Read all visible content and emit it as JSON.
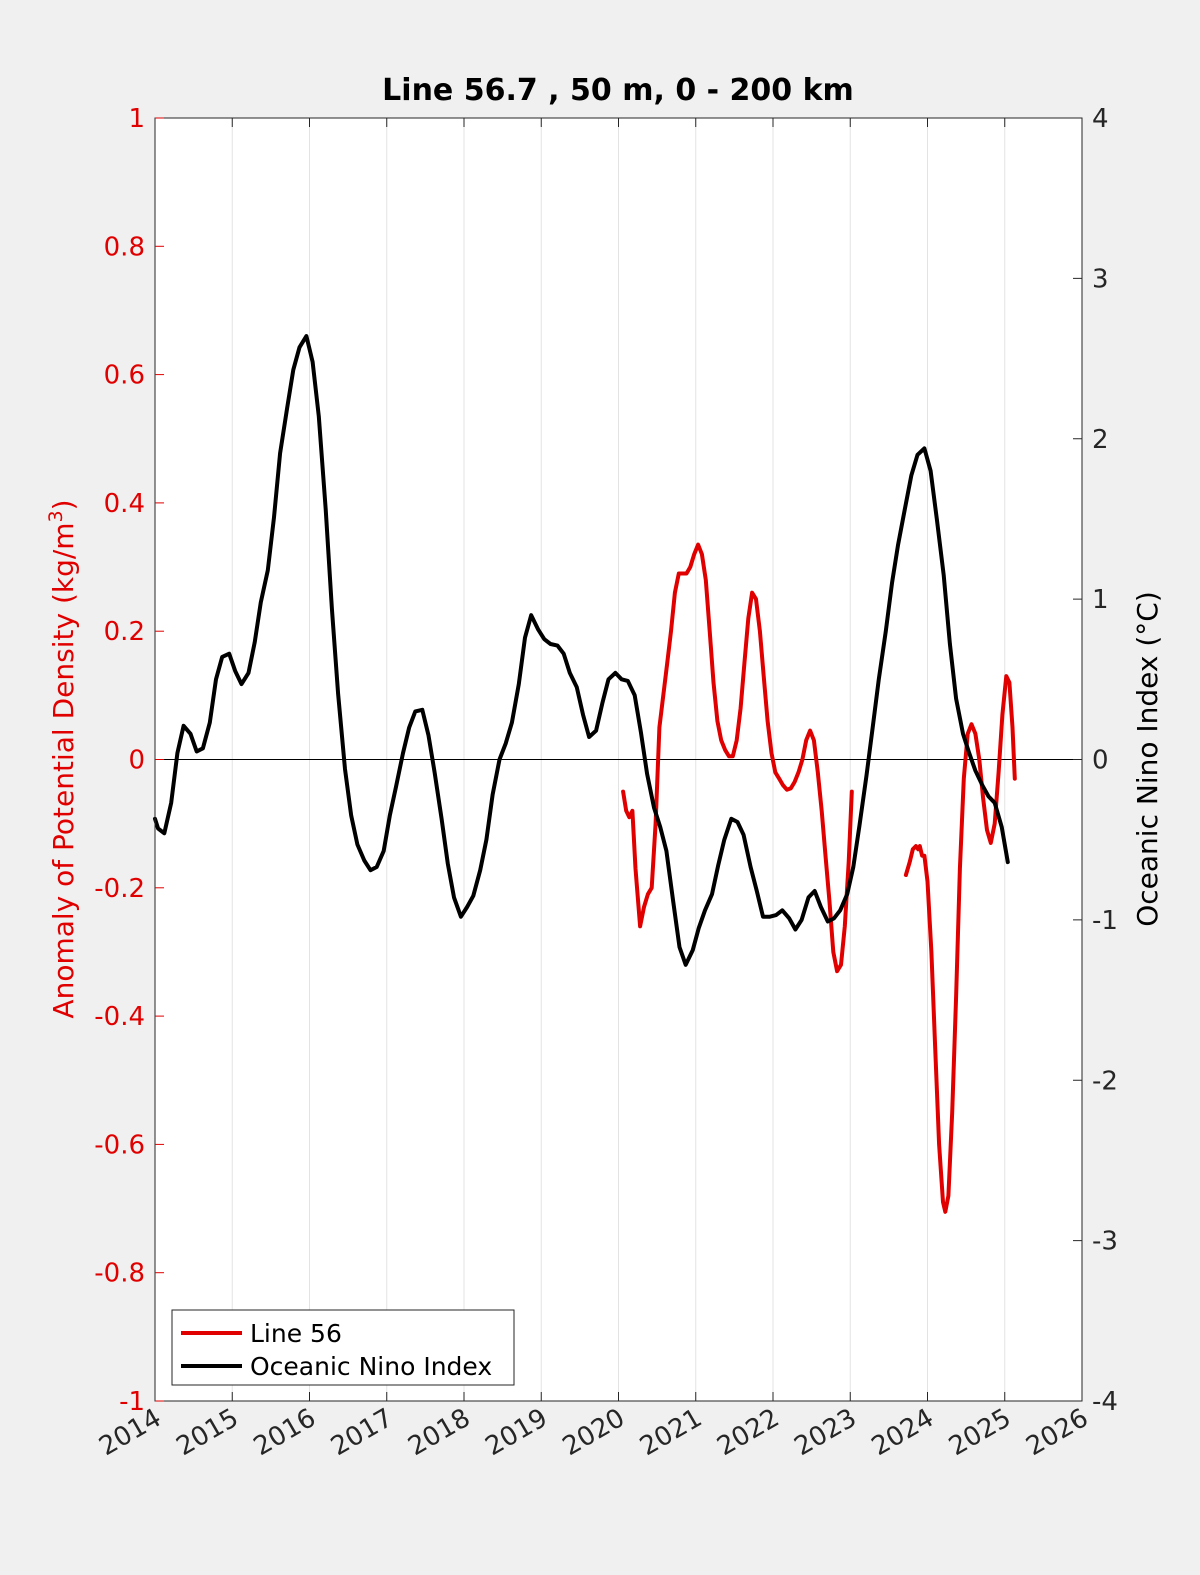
{
  "chart_data": {
    "type": "line",
    "title": "Line 56.7 , 50 m, 0 - 200 km",
    "xlabel": "",
    "ylabel_left": "Anomaly of Potential Density (kg/m",
    "ylabel_left_sup": "3",
    "ylabel_left_close": ")",
    "ylabel_right": "Oceanic Nino Index (°C)",
    "xlim": [
      2014,
      2026
    ],
    "ylim_left": [
      -1,
      1
    ],
    "ylim_right": [
      -4,
      4
    ],
    "xticks": [
      2014,
      2015,
      2016,
      2017,
      2018,
      2019,
      2020,
      2021,
      2022,
      2023,
      2024,
      2025,
      2026
    ],
    "xtick_labels": [
      "2014",
      "2015",
      "2016",
      "2017",
      "2018",
      "2019",
      "2020",
      "2021",
      "2022",
      "2023",
      "2024",
      "2025",
      "2026"
    ],
    "yticks_left": [
      -1,
      -0.8,
      -0.6,
      -0.4,
      -0.2,
      0,
      0.2,
      0.4,
      0.6,
      0.8,
      1
    ],
    "ytick_labels_left": [
      "-1",
      "-0.8",
      "-0.6",
      "-0.4",
      "-0.2",
      "0",
      "0.2",
      "0.4",
      "0.6",
      "0.8",
      "1"
    ],
    "yticks_right": [
      -4,
      -3,
      -2,
      -1,
      0,
      1,
      2,
      3,
      4
    ],
    "ytick_labels_right": [
      "-4",
      "-3",
      "-2",
      "-1",
      "0",
      "1",
      "2",
      "3",
      "4"
    ],
    "grid": "vertical",
    "legend_position": "bottom-left",
    "colors": {
      "left_axis": "#e00000",
      "right_axis": "#000000",
      "background": "#f0f0f0",
      "plot_bg": "#ffffff"
    },
    "series": [
      {
        "name": "Line 56",
        "axis": "left",
        "color": "#e00000",
        "segments": [
          [
            [
              2020.06,
              -0.05
            ],
            [
              2020.1,
              -0.08
            ],
            [
              2020.14,
              -0.09
            ],
            [
              2020.18,
              -0.08
            ],
            [
              2020.22,
              -0.17
            ],
            [
              2020.28,
              -0.26
            ],
            [
              2020.33,
              -0.23
            ],
            [
              2020.38,
              -0.21
            ],
            [
              2020.43,
              -0.2
            ],
            [
              2020.48,
              -0.1
            ],
            [
              2020.53,
              0.05
            ],
            [
              2020.58,
              0.1
            ],
            [
              2020.63,
              0.15
            ],
            [
              2020.68,
              0.2
            ],
            [
              2020.73,
              0.26
            ],
            [
              2020.78,
              0.29
            ],
            [
              2020.83,
              0.29
            ],
            [
              2020.88,
              0.29
            ],
            [
              2020.93,
              0.3
            ],
            [
              2020.98,
              0.32
            ],
            [
              2021.03,
              0.335
            ],
            [
              2021.08,
              0.32
            ],
            [
              2021.13,
              0.28
            ],
            [
              2021.18,
              0.2
            ],
            [
              2021.23,
              0.12
            ],
            [
              2021.28,
              0.06
            ],
            [
              2021.33,
              0.03
            ],
            [
              2021.38,
              0.015
            ],
            [
              2021.43,
              0.005
            ],
            [
              2021.48,
              0.005
            ],
            [
              2021.53,
              0.03
            ],
            [
              2021.58,
              0.08
            ],
            [
              2021.63,
              0.15
            ],
            [
              2021.68,
              0.22
            ],
            [
              2021.73,
              0.26
            ],
            [
              2021.78,
              0.25
            ],
            [
              2021.83,
              0.2
            ],
            [
              2021.88,
              0.13
            ],
            [
              2021.93,
              0.06
            ],
            [
              2021.98,
              0.01
            ],
            [
              2022.03,
              -0.02
            ],
            [
              2022.08,
              -0.03
            ],
            [
              2022.13,
              -0.04
            ],
            [
              2022.18,
              -0.047
            ],
            [
              2022.23,
              -0.045
            ],
            [
              2022.28,
              -0.035
            ],
            [
              2022.33,
              -0.02
            ],
            [
              2022.38,
              0.0
            ],
            [
              2022.43,
              0.03
            ],
            [
              2022.48,
              0.045
            ],
            [
              2022.53,
              0.03
            ],
            [
              2022.58,
              -0.02
            ],
            [
              2022.63,
              -0.08
            ],
            [
              2022.68,
              -0.15
            ],
            [
              2022.73,
              -0.22
            ],
            [
              2022.78,
              -0.3
            ],
            [
              2022.83,
              -0.33
            ],
            [
              2022.88,
              -0.32
            ],
            [
              2022.93,
              -0.26
            ],
            [
              2022.98,
              -0.16
            ],
            [
              2023.02,
              -0.05
            ]
          ],
          [
            [
              2023.72,
              -0.18
            ],
            [
              2023.77,
              -0.16
            ],
            [
              2023.81,
              -0.14
            ],
            [
              2023.85,
              -0.135
            ],
            [
              2023.88,
              -0.14
            ],
            [
              2023.9,
              -0.135
            ],
            [
              2023.93,
              -0.15
            ],
            [
              2023.96,
              -0.15
            ],
            [
              2024.0,
              -0.19
            ],
            [
              2024.05,
              -0.3
            ],
            [
              2024.1,
              -0.45
            ],
            [
              2024.15,
              -0.6
            ],
            [
              2024.2,
              -0.69
            ],
            [
              2024.23,
              -0.705
            ],
            [
              2024.27,
              -0.68
            ],
            [
              2024.32,
              -0.55
            ],
            [
              2024.37,
              -0.37
            ],
            [
              2024.42,
              -0.17
            ],
            [
              2024.47,
              -0.03
            ],
            [
              2024.52,
              0.04
            ],
            [
              2024.57,
              0.055
            ],
            [
              2024.62,
              0.04
            ],
            [
              2024.67,
              0.0
            ],
            [
              2024.72,
              -0.06
            ],
            [
              2024.77,
              -0.11
            ],
            [
              2024.82,
              -0.13
            ],
            [
              2024.87,
              -0.1
            ],
            [
              2024.92,
              -0.02
            ],
            [
              2024.97,
              0.07
            ],
            [
              2025.02,
              0.13
            ],
            [
              2025.06,
              0.12
            ],
            [
              2025.1,
              0.05
            ],
            [
              2025.13,
              -0.03
            ]
          ]
        ]
      },
      {
        "name": "Oceanic Nino Index",
        "axis": "right",
        "color": "#000000",
        "segments": [
          [
            [
              2014.0,
              -0.37
            ],
            [
              2014.04,
              -0.43
            ],
            [
              2014.12,
              -0.46
            ],
            [
              2014.21,
              -0.27
            ],
            [
              2014.29,
              0.04
            ],
            [
              2014.37,
              0.21
            ],
            [
              2014.46,
              0.16
            ],
            [
              2014.54,
              0.05
            ],
            [
              2014.62,
              0.07
            ],
            [
              2014.71,
              0.23
            ],
            [
              2014.79,
              0.5
            ],
            [
              2014.87,
              0.64
            ],
            [
              2014.96,
              0.66
            ],
            [
              2015.04,
              0.55
            ],
            [
              2015.12,
              0.47
            ],
            [
              2015.21,
              0.54
            ],
            [
              2015.29,
              0.73
            ],
            [
              2015.37,
              0.98
            ],
            [
              2015.46,
              1.18
            ],
            [
              2015.54,
              1.51
            ],
            [
              2015.62,
              1.91
            ],
            [
              2015.71,
              2.19
            ],
            [
              2015.79,
              2.43
            ],
            [
              2015.87,
              2.57
            ],
            [
              2015.96,
              2.64
            ],
            [
              2016.04,
              2.48
            ],
            [
              2016.12,
              2.14
            ],
            [
              2016.21,
              1.56
            ],
            [
              2016.29,
              0.94
            ],
            [
              2016.37,
              0.41
            ],
            [
              2016.46,
              -0.06
            ],
            [
              2016.54,
              -0.35
            ],
            [
              2016.62,
              -0.53
            ],
            [
              2016.71,
              -0.63
            ],
            [
              2016.79,
              -0.69
            ],
            [
              2016.87,
              -0.67
            ],
            [
              2016.96,
              -0.57
            ],
            [
              2017.04,
              -0.35
            ],
            [
              2017.12,
              -0.17
            ],
            [
              2017.21,
              0.04
            ],
            [
              2017.29,
              0.2
            ],
            [
              2017.37,
              0.3
            ],
            [
              2017.46,
              0.31
            ],
            [
              2017.54,
              0.15
            ],
            [
              2017.62,
              -0.08
            ],
            [
              2017.71,
              -0.37
            ],
            [
              2017.79,
              -0.65
            ],
            [
              2017.87,
              -0.86
            ],
            [
              2017.96,
              -0.98
            ],
            [
              2018.04,
              -0.92
            ],
            [
              2018.12,
              -0.85
            ],
            [
              2018.21,
              -0.69
            ],
            [
              2018.29,
              -0.5
            ],
            [
              2018.37,
              -0.22
            ],
            [
              2018.46,
              0.0
            ],
            [
              2018.54,
              0.1
            ],
            [
              2018.62,
              0.23
            ],
            [
              2018.71,
              0.47
            ],
            [
              2018.79,
              0.76
            ],
            [
              2018.87,
              0.9
            ],
            [
              2018.96,
              0.81
            ],
            [
              2019.04,
              0.75
            ],
            [
              2019.12,
              0.72
            ],
            [
              2019.21,
              0.71
            ],
            [
              2019.29,
              0.66
            ],
            [
              2019.37,
              0.54
            ],
            [
              2019.46,
              0.45
            ],
            [
              2019.54,
              0.28
            ],
            [
              2019.62,
              0.14
            ],
            [
              2019.71,
              0.18
            ],
            [
              2019.79,
              0.35
            ],
            [
              2019.87,
              0.5
            ],
            [
              2019.96,
              0.54
            ],
            [
              2020.04,
              0.5
            ],
            [
              2020.12,
              0.49
            ],
            [
              2020.21,
              0.4
            ],
            [
              2020.29,
              0.17
            ],
            [
              2020.37,
              -0.09
            ],
            [
              2020.46,
              -0.3
            ],
            [
              2020.54,
              -0.42
            ],
            [
              2020.62,
              -0.57
            ],
            [
              2020.71,
              -0.89
            ],
            [
              2020.79,
              -1.17
            ],
            [
              2020.87,
              -1.28
            ],
            [
              2020.96,
              -1.19
            ],
            [
              2021.04,
              -1.05
            ],
            [
              2021.12,
              -0.94
            ],
            [
              2021.21,
              -0.84
            ],
            [
              2021.29,
              -0.66
            ],
            [
              2021.37,
              -0.5
            ],
            [
              2021.46,
              -0.37
            ],
            [
              2021.54,
              -0.39
            ],
            [
              2021.62,
              -0.47
            ],
            [
              2021.71,
              -0.67
            ],
            [
              2021.79,
              -0.82
            ],
            [
              2021.87,
              -0.98
            ],
            [
              2021.96,
              -0.98
            ],
            [
              2022.04,
              -0.97
            ],
            [
              2022.12,
              -0.94
            ],
            [
              2022.21,
              -0.99
            ],
            [
              2022.29,
              -1.06
            ],
            [
              2022.37,
              -1.0
            ],
            [
              2022.46,
              -0.86
            ],
            [
              2022.54,
              -0.82
            ],
            [
              2022.62,
              -0.92
            ],
            [
              2022.71,
              -1.01
            ],
            [
              2022.79,
              -0.99
            ],
            [
              2022.87,
              -0.94
            ],
            [
              2022.96,
              -0.84
            ],
            [
              2023.04,
              -0.67
            ],
            [
              2023.12,
              -0.41
            ],
            [
              2023.21,
              -0.1
            ],
            [
              2023.29,
              0.2
            ],
            [
              2023.37,
              0.5
            ],
            [
              2023.46,
              0.8
            ],
            [
              2023.54,
              1.1
            ],
            [
              2023.62,
              1.34
            ],
            [
              2023.71,
              1.57
            ],
            [
              2023.79,
              1.77
            ],
            [
              2023.87,
              1.9
            ],
            [
              2023.96,
              1.94
            ],
            [
              2024.04,
              1.8
            ],
            [
              2024.12,
              1.5
            ],
            [
              2024.21,
              1.15
            ],
            [
              2024.29,
              0.72
            ],
            [
              2024.37,
              0.38
            ],
            [
              2024.46,
              0.16
            ],
            [
              2024.54,
              0.04
            ],
            [
              2024.62,
              -0.07
            ],
            [
              2024.71,
              -0.16
            ],
            [
              2024.79,
              -0.23
            ],
            [
              2024.87,
              -0.27
            ],
            [
              2024.96,
              -0.42
            ],
            [
              2025.04,
              -0.64
            ]
          ]
        ]
      }
    ]
  }
}
